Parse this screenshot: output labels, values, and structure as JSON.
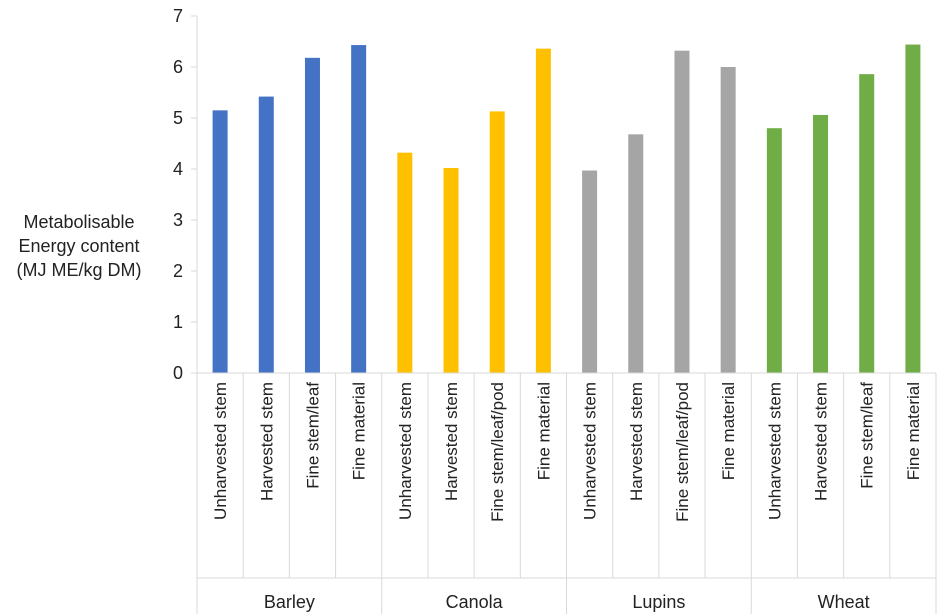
{
  "chart_data": {
    "type": "bar",
    "ylabel_lines": [
      "Metabolisable",
      "Energy content",
      "(MJ ME/kg DM)"
    ],
    "ylim": [
      0,
      7
    ],
    "yticks": [
      0,
      1,
      2,
      3,
      4,
      5,
      6,
      7
    ],
    "grid": false,
    "legend": "none",
    "groups": [
      {
        "name": "Barley",
        "color": "#4472C4",
        "categories": [
          "Unharvested stem",
          "Harvested stem",
          "Fine stem/leaf",
          "Fine material"
        ],
        "values": [
          5.15,
          5.42,
          6.18,
          6.43
        ]
      },
      {
        "name": "Canola",
        "color": "#FFC000",
        "categories": [
          "Unharvested stem",
          "Harvested stem",
          "Fine stem/leaf/pod",
          "Fine material"
        ],
        "values": [
          4.32,
          4.02,
          5.13,
          6.36
        ]
      },
      {
        "name": "Lupins",
        "color": "#A5A5A5",
        "categories": [
          "Unharvested stem",
          "Harvested stem",
          "Fine stem/leaf/pod",
          "Fine material"
        ],
        "values": [
          3.97,
          4.68,
          6.32,
          6.0
        ]
      },
      {
        "name": "Wheat",
        "color": "#70AD47",
        "categories": [
          "Unharvested stem",
          "Harvested stem",
          "Fine stem/leaf",
          "Fine material"
        ],
        "values": [
          4.8,
          5.06,
          5.86,
          6.44
        ]
      }
    ]
  }
}
